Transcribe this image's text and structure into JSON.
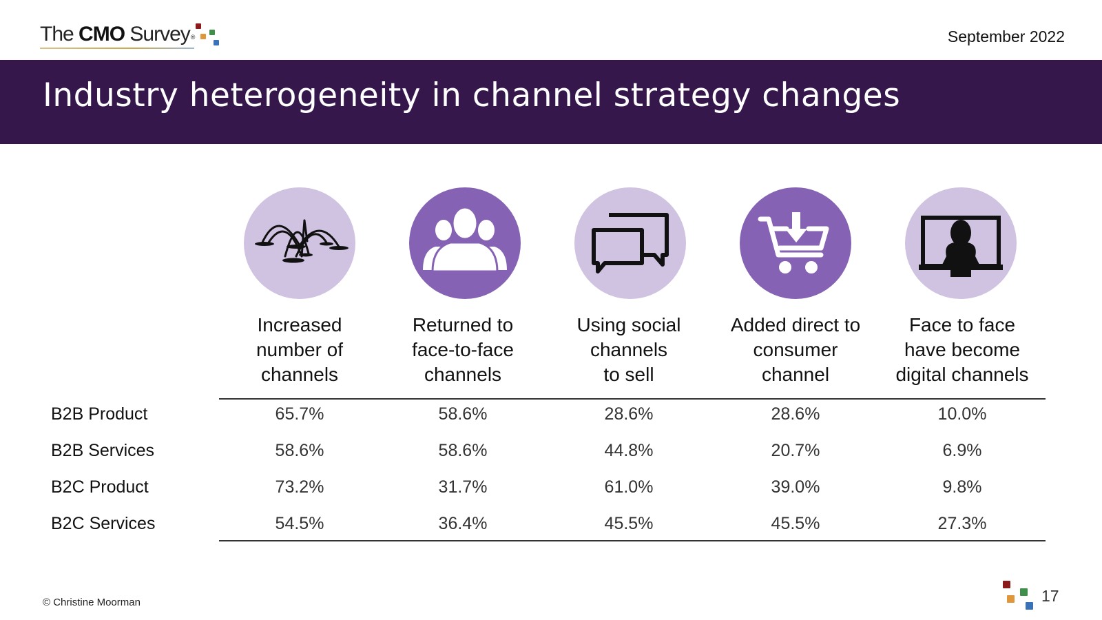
{
  "header": {
    "logo": {
      "the": "The",
      "cmo": "CMO",
      "survey": "Survey",
      "reg": "®"
    },
    "date": "September 2022",
    "title": "Industry heterogeneity in channel strategy changes"
  },
  "columns": [
    {
      "icon": "fountain-channels-icon",
      "lines": [
        "Increased",
        "number of",
        "channels"
      ]
    },
    {
      "icon": "people-group-icon",
      "lines": [
        "Returned to",
        "face-to-face",
        "channels"
      ]
    },
    {
      "icon": "chat-bubbles-icon",
      "lines": [
        "Using social",
        "channels",
        "to sell"
      ]
    },
    {
      "icon": "shopping-cart-icon",
      "lines": [
        "Added direct to",
        "consumer",
        "channel"
      ]
    },
    {
      "icon": "monitor-person-icon",
      "lines": [
        "Face to face",
        "have become",
        "digital channels"
      ]
    }
  ],
  "rows": [
    {
      "label": "B2B Product",
      "values": [
        "65.7%",
        "58.6%",
        "28.6%",
        "28.6%",
        "10.0%"
      ]
    },
    {
      "label": "B2B Services",
      "values": [
        "58.6%",
        "58.6%",
        "44.8%",
        "20.7%",
        "6.9%"
      ]
    },
    {
      "label": "B2C Product",
      "values": [
        "73.2%",
        "31.7%",
        "61.0%",
        "39.0%",
        "9.8%"
      ]
    },
    {
      "label": "B2C Services",
      "values": [
        "54.5%",
        "36.4%",
        "45.5%",
        "45.5%",
        "27.3%"
      ]
    }
  ],
  "footer": {
    "copyright": "© Christine Moorman",
    "page_number": "17"
  },
  "colors": {
    "band": "#35174c",
    "light_purple": "#d0c3e2",
    "mid_purple": "#8562b3",
    "sq_red": "#8b1a1a",
    "sq_orange": "#e0963a",
    "sq_green": "#3f8f4a",
    "sq_blue": "#3a72b8"
  }
}
